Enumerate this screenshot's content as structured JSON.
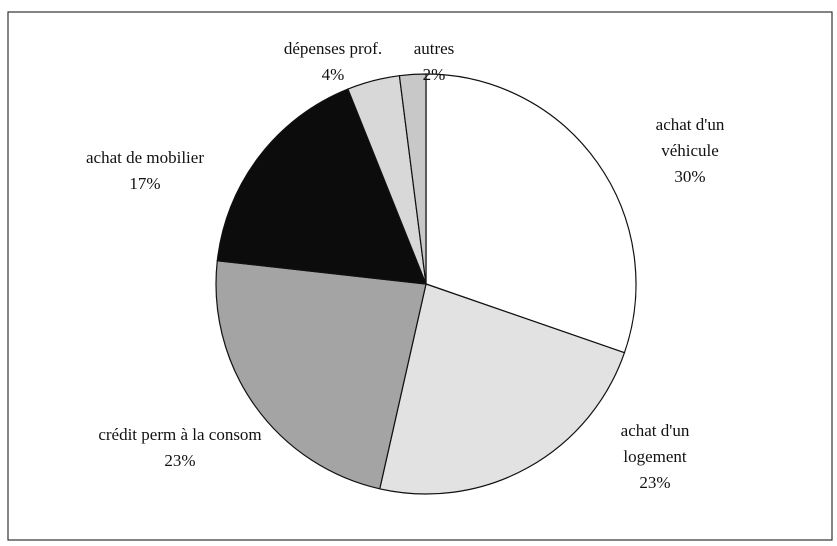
{
  "chart_data": {
    "type": "pie",
    "categories": [
      "achat d'un véhicule",
      "achat d'un logement",
      "crédit perm à la consom",
      "achat de mobilier",
      "dépenses prof.",
      "autres"
    ],
    "values": [
      30,
      23,
      23,
      17,
      4,
      2
    ],
    "value_labels": [
      "30%",
      "23%",
      "23%",
      "17%",
      "4%",
      "2%"
    ],
    "colors": [
      "#ffffff",
      "#e2e2e2",
      "#a4a4a4",
      "#0c0c0c",
      "#d8d8d8",
      "#c8c8c8"
    ]
  }
}
